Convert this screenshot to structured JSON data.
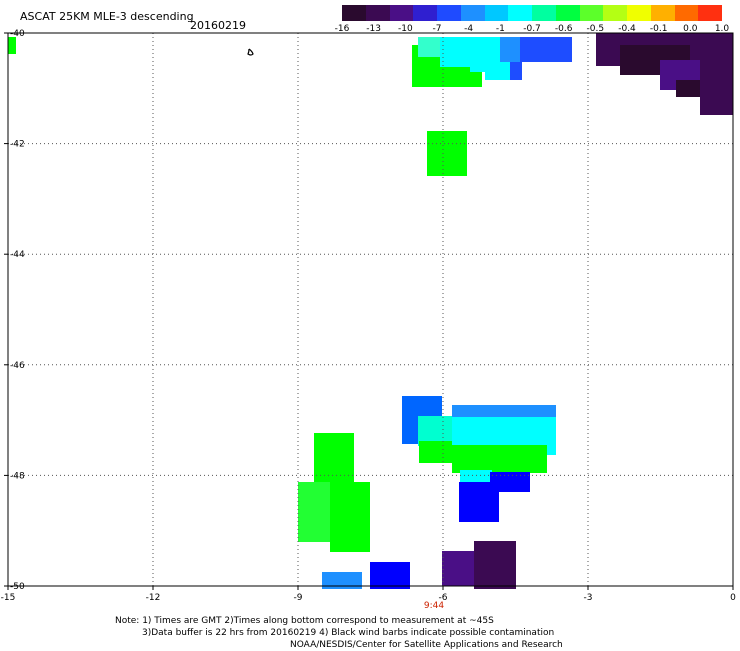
{
  "header": {
    "title": "ASCAT 25KM MLE-3 descending",
    "date": "20160219"
  },
  "colorbar": {
    "colors": [
      "#2a0a2e",
      "#3b0a52",
      "#4a0f86",
      "#2f1fd0",
      "#1f4bff",
      "#1e90ff",
      "#00c8ff",
      "#00ffff",
      "#00ffa0",
      "#00ff40",
      "#5cff2a",
      "#b4ff14",
      "#f0ff00",
      "#ffb000",
      "#ff6a00",
      "#ff3010"
    ],
    "labels": [
      "-16",
      "-13",
      "-10",
      "-7",
      "-4",
      "-1",
      "-0.7",
      "-0.6",
      "-0.5",
      "-0.4",
      "-0.1",
      "0.0",
      "1.0"
    ]
  },
  "map": {
    "lat_labels": [
      "-40",
      "-42",
      "-44",
      "-46",
      "-48",
      "-50"
    ],
    "lon_labels": [
      "-15",
      "-12",
      "-9",
      "-6",
      "-3",
      "0"
    ],
    "time_label": "9:44"
  },
  "notes": {
    "line1": "Note: 1) Times are GMT 2)Times along bottom correspond to measurement at ~45S",
    "line2": "3)Data buffer is 22 hrs from 20160219 4) Black wind barbs indicate possible contamination",
    "line3": "NOAA/NESDIS/Center for Satellite Applications and Research"
  }
}
